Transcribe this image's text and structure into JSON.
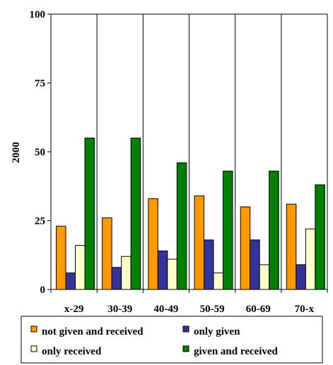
{
  "chart_data": {
    "type": "bar",
    "title": "",
    "xlabel": "",
    "ylabel": "2000",
    "ylim": [
      0,
      100
    ],
    "yticks": [
      0,
      25,
      50,
      75,
      100
    ],
    "categories": [
      "x-29",
      "30-39",
      "40-49",
      "50-59",
      "60-69",
      "70-x"
    ],
    "series": [
      {
        "name": "not given and received",
        "color": "#FF9900",
        "values": [
          23,
          26,
          33,
          34,
          30,
          31
        ]
      },
      {
        "name": "only given",
        "color": "#333399",
        "values": [
          6,
          8,
          14,
          18,
          18,
          9
        ]
      },
      {
        "name": "only received",
        "color": "#FFFFCC",
        "values": [
          16,
          12,
          11,
          6,
          9,
          22
        ]
      },
      {
        "name": "given and received",
        "color": "#008000",
        "values": [
          55,
          55,
          46,
          43,
          43,
          38
        ]
      }
    ],
    "grid": "vertical category separators",
    "legend_position": "bottom"
  }
}
